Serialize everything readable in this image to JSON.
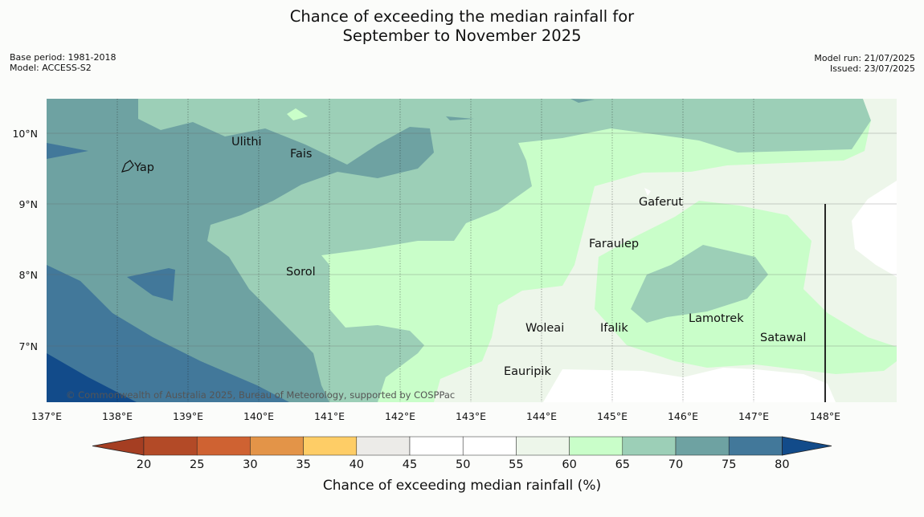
{
  "header": {
    "title_line1": "Chance of exceeding the median rainfall for",
    "title_line2": "September to November 2025",
    "base_period": "Base period: 1981-2018",
    "model": "Model: ACCESS-S2",
    "model_run": "Model run: 21/07/2025",
    "issued": "Issued: 23/07/2025"
  },
  "map": {
    "copyright": "© Commonwealth of Australia 2025, Bureau of Meteorology, supported by COSPPac",
    "lon_labels": [
      "137°E",
      "138°E",
      "139°E",
      "140°E",
      "141°E",
      "142°E",
      "143°E",
      "144°E",
      "145°E",
      "146°E",
      "147°E",
      "148°E"
    ],
    "lat_labels": [
      "10°N",
      "9°N",
      "8°N",
      "7°N"
    ],
    "places": [
      "Ulithi",
      "Fais",
      "Yap",
      "Gaferut",
      "Faraulep",
      "Sorol",
      "Lamotrek",
      "Woleai",
      "Ifalik",
      "Satawal",
      "Eauripik"
    ]
  },
  "colorbar": {
    "label": "Chance of exceeding median rainfall (%)",
    "ticks": [
      "20",
      "25",
      "30",
      "35",
      "40",
      "45",
      "50",
      "55",
      "60",
      "65",
      "70",
      "75",
      "80"
    ],
    "colors": [
      "#b34a27",
      "#cf6232",
      "#e39448",
      "#fecd66",
      "#ecebe8",
      "#ffffff",
      "#ffffff",
      "#edf6ea",
      "#c9fec9",
      "#9ccfb7",
      "#6ea2a2",
      "#42789a",
      "#124b8a"
    ],
    "low_arrow_color": "#a53e22",
    "high_arrow_color": "#124b8a"
  }
}
